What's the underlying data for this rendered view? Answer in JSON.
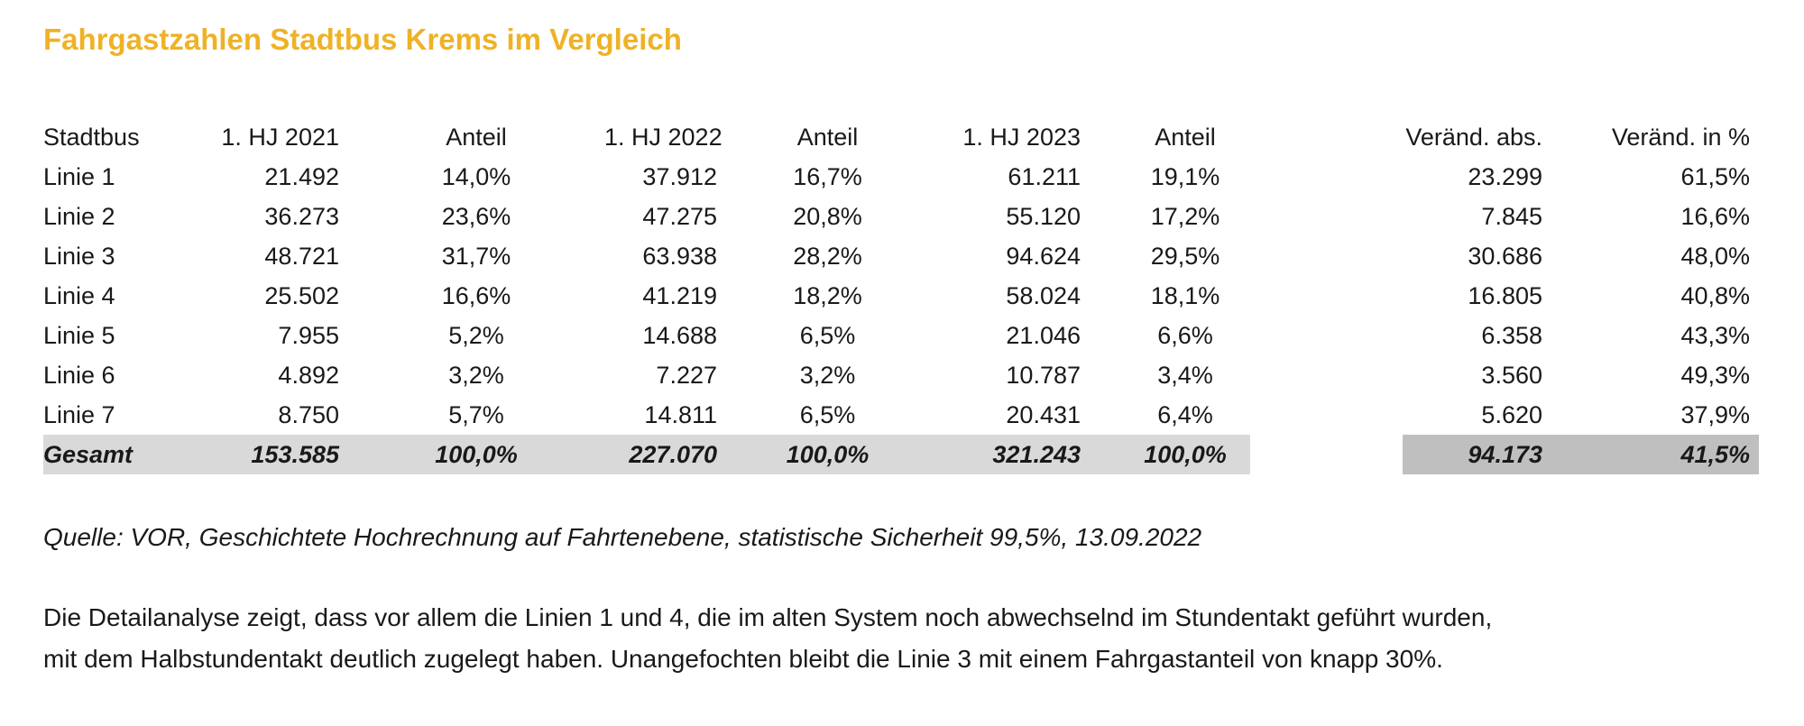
{
  "title": "Fahrgastzahlen Stadtbus Krems im Vergleich",
  "table": {
    "headers": [
      "Stadtbus",
      "1. HJ 2021",
      "Anteil",
      "1. HJ 2022",
      "Anteil",
      "1. HJ 2023",
      "Anteil",
      "Veränd. abs.",
      "Veränd. in %"
    ],
    "rows": [
      [
        "Linie 1",
        "21.492",
        "14,0%",
        "37.912",
        "16,7%",
        "61.211",
        "19,1%",
        "23.299",
        "61,5%"
      ],
      [
        "Linie 2",
        "36.273",
        "23,6%",
        "47.275",
        "20,8%",
        "55.120",
        "17,2%",
        "7.845",
        "16,6%"
      ],
      [
        "Linie 3",
        "48.721",
        "31,7%",
        "63.938",
        "28,2%",
        "94.624",
        "29,5%",
        "30.686",
        "48,0%"
      ],
      [
        "Linie 4",
        "25.502",
        "16,6%",
        "41.219",
        "18,2%",
        "58.024",
        "18,1%",
        "16.805",
        "40,8%"
      ],
      [
        "Linie 5",
        "7.955",
        "5,2%",
        "14.688",
        "6,5%",
        "21.046",
        "6,6%",
        "6.358",
        "43,3%"
      ],
      [
        "Linie 6",
        "4.892",
        "3,2%",
        "7.227",
        "3,2%",
        "10.787",
        "3,4%",
        "3.560",
        "49,3%"
      ],
      [
        "Linie 7",
        "8.750",
        "5,7%",
        "14.811",
        "6,5%",
        "20.431",
        "6,4%",
        "5.620",
        "37,9%"
      ]
    ],
    "total": [
      "Gesamt",
      "153.585",
      "100,0%",
      "227.070",
      "100,0%",
      "321.243",
      "100,0%",
      "94.173",
      "41,5%"
    ]
  },
  "source_note": "Quelle: VOR, Geschichtete Hochrechnung auf Fahrtenebene, statistische Sicherheit 99,5%, 13.09.2022",
  "body_text": {
    "line1": "Die Detailanalyse zeigt, dass vor allem die Linien 1 und 4, die im alten System noch abwechselnd im Stundentakt geführt wurden,",
    "line2": "mit dem Halbstundentakt deutlich zugelegt haben. Unangefochten bleibt die Linie 3 mit einem Fahrgastanteil von knapp 30%."
  },
  "colors": {
    "title": "#EFB226",
    "total_row_left_bg": "#D9D9D9",
    "total_row_right_bg": "#BFBFBF",
    "text": "#191919"
  }
}
